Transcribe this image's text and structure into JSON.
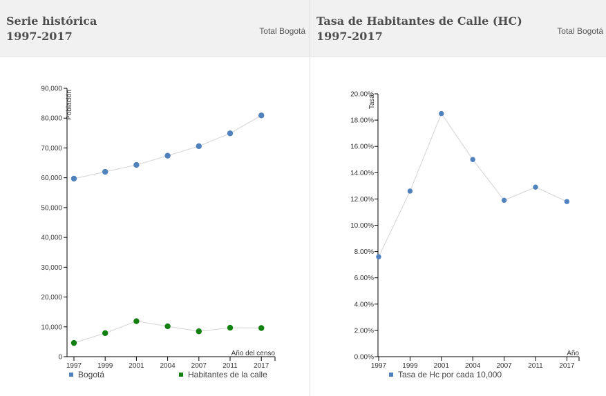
{
  "panels": [
    {
      "title_line1": "Serie histórica",
      "title_line2": "1997-2017",
      "subtitle": "Total Bogotá"
    },
    {
      "title_line1": "Tasa de Habitantes de Calle (HC)",
      "title_line2": "1997-2017",
      "subtitle": "Total Bogotá"
    }
  ],
  "chart_data": [
    {
      "type": "line",
      "title": "Serie histórica 1997-2017",
      "xlabel": "Año del censo",
      "ylabel": "Población",
      "categories": [
        "1997",
        "1999",
        "2001",
        "2004",
        "2007",
        "2011",
        "2017"
      ],
      "ylim": [
        0,
        90000
      ],
      "yticks": [
        "0",
        "10,000",
        "20,000",
        "30,000",
        "40,000",
        "50,000",
        "60,000",
        "70,000",
        "80,000",
        "90,000"
      ],
      "series": [
        {
          "name": "Bogotá",
          "color": "#4f81bd",
          "values": [
            59700,
            62000,
            64300,
            67400,
            70600,
            74900,
            80900
          ]
        },
        {
          "name": "Habitantes de la calle",
          "color": "#12800e",
          "values": [
            4600,
            7900,
            11900,
            10200,
            8500,
            9700,
            9600
          ]
        }
      ],
      "line_color": "#d9d9d9",
      "grid": false,
      "legend_position": "bottom"
    },
    {
      "type": "line",
      "title": "Tasa de Habitantes de Calle (HC) 1997-2017",
      "xlabel": "Año",
      "ylabel": "Tasa",
      "categories": [
        "1997",
        "1999",
        "2001",
        "2004",
        "2007",
        "2011",
        "2017"
      ],
      "ylim": [
        0,
        20
      ],
      "yticks": [
        "0.00%",
        "2.00%",
        "4.00%",
        "6.00%",
        "8.00%",
        "10.00%",
        "12.00%",
        "14.00%",
        "16.00%",
        "18.00%",
        "20.00%"
      ],
      "series": [
        {
          "name": "Tasa de Hc por cada 10,000",
          "color": "#4f81bd",
          "values": [
            7.6,
            12.6,
            18.5,
            15.0,
            11.9,
            12.9,
            11.8
          ]
        }
      ],
      "line_color": "#d9d9d9",
      "grid": false,
      "legend_position": "bottom"
    }
  ]
}
